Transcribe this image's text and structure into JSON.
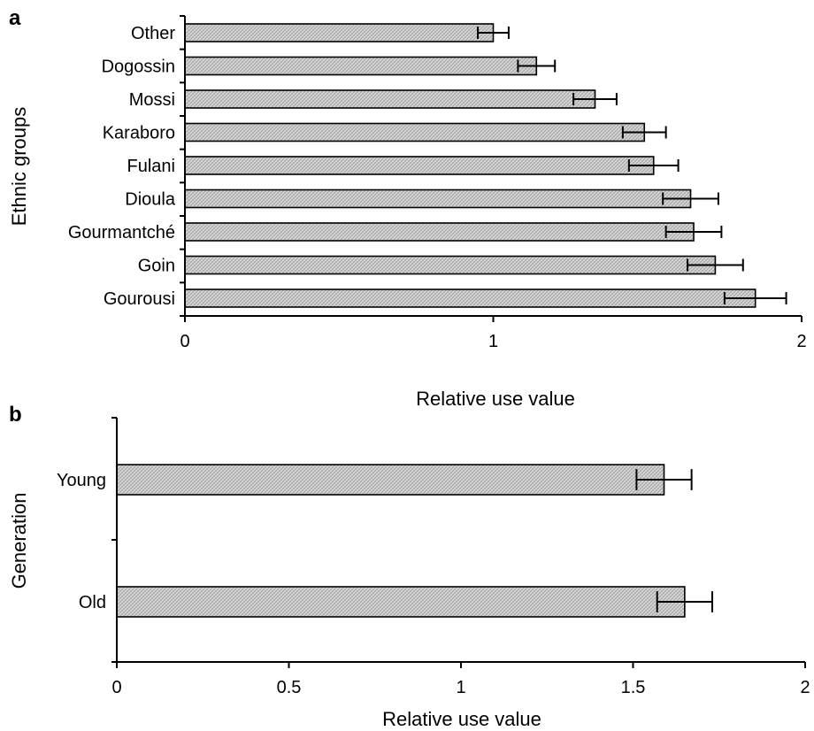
{
  "chart_data": [
    {
      "panel_label": "a",
      "type": "bar",
      "orientation": "horizontal",
      "categories": [
        "Other",
        "Dogossin",
        "Mossi",
        "Karaboro",
        "Fulani",
        "Dioula",
        "Gourmantché",
        "Goin",
        "Gourousi"
      ],
      "values": [
        1.0,
        1.14,
        1.33,
        1.49,
        1.52,
        1.64,
        1.65,
        1.72,
        1.85
      ],
      "errors": [
        0.05,
        0.06,
        0.07,
        0.07,
        0.08,
        0.09,
        0.09,
        0.09,
        0.1
      ],
      "xlabel": "Relative use value",
      "ylabel": "Ethnic groups",
      "xlim": [
        0,
        2
      ],
      "xticks": [
        0,
        1,
        2
      ],
      "xtick_labels": [
        "0",
        "1",
        "2"
      ],
      "grid": false,
      "bar_fill": "#d4d4d4"
    },
    {
      "panel_label": "b",
      "type": "bar",
      "orientation": "horizontal",
      "categories": [
        "Young",
        "Old"
      ],
      "values": [
        1.59,
        1.65
      ],
      "errors": [
        0.08,
        0.08
      ],
      "xlabel": "Relative use value",
      "ylabel": "Generation",
      "xlim": [
        0,
        2
      ],
      "xticks": [
        0,
        0.5,
        1,
        1.5,
        2
      ],
      "xtick_labels": [
        "0",
        "0.5",
        "1",
        "1.5",
        "2"
      ],
      "grid": false,
      "bar_fill": "#d4d4d4"
    }
  ]
}
